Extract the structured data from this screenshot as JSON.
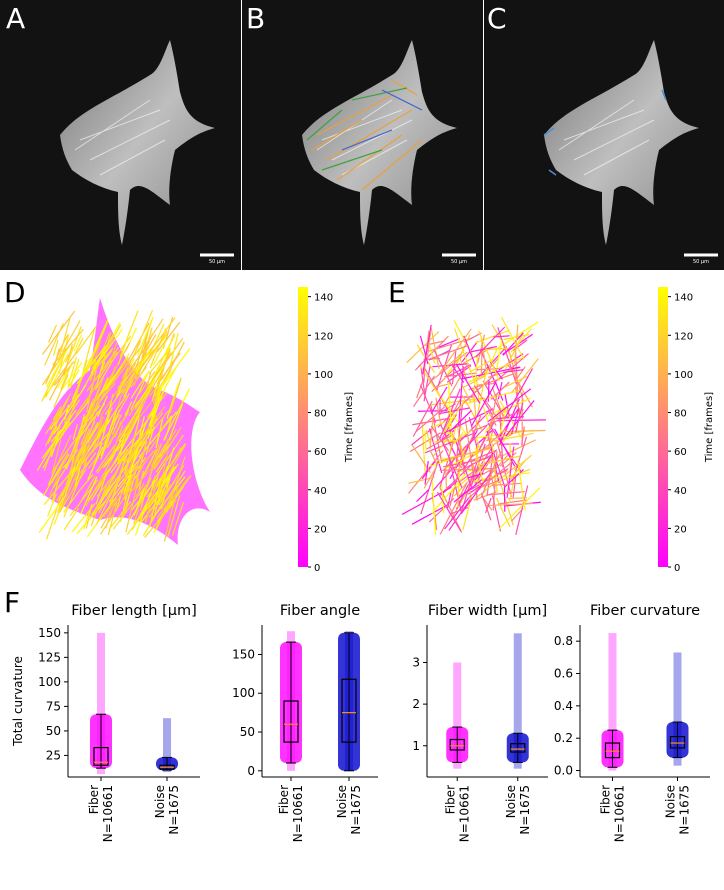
{
  "panel_labels": [
    "A",
    "B",
    "C",
    "D",
    "E",
    "F"
  ],
  "scale_bar_label": "50 µm",
  "chart_data": [
    {
      "type": "colorbar",
      "label": "Time [frames]",
      "colors": [
        "#ff00ff",
        "#ffff00"
      ],
      "ylim": [
        0,
        145
      ],
      "yticks": [
        0,
        20,
        40,
        60,
        80,
        100,
        120,
        140
      ]
    },
    {
      "type": "colorbar",
      "label": "Time [frames]",
      "colors": [
        "#ff00ff",
        "#ffff00"
      ],
      "ylim": [
        0,
        145
      ],
      "yticks": [
        0,
        20,
        40,
        60,
        80,
        100,
        120,
        140
      ]
    },
    {
      "type": "box",
      "title": "Fiber length [µm]",
      "ylabel": "Total curvature",
      "categories": [
        "Fiber",
        "Noise"
      ],
      "n_labels": [
        "N=10661",
        "N=1675"
      ],
      "ylim": [
        3,
        158
      ],
      "yticks": [
        25,
        50,
        75,
        100,
        125,
        150
      ],
      "boxes": [
        {
          "color": "#ff00ff",
          "min": 6,
          "whislo": 12,
          "q1": 15,
          "median": 18,
          "q3": 33,
          "whishi": 67,
          "max": 150
        },
        {
          "color": "#0000cc",
          "min": 8,
          "whislo": 10,
          "q1": 11,
          "median": 13,
          "q3": 15,
          "whishi": 23,
          "max": 63
        }
      ]
    },
    {
      "type": "box",
      "title": "Fiber angle",
      "categories": [
        "Fiber",
        "Noise"
      ],
      "n_labels": [
        "N=10661",
        "N=1675"
      ],
      "ylim": [
        -8,
        188
      ],
      "yticks": [
        0,
        50,
        100,
        150
      ],
      "boxes": [
        {
          "color": "#ff00ff",
          "min": 0,
          "whislo": 10,
          "q1": 37,
          "median": 60,
          "q3": 90,
          "whishi": 166,
          "max": 180
        },
        {
          "color": "#0000cc",
          "min": 0,
          "whislo": 0,
          "q1": 37,
          "median": 75,
          "q3": 118,
          "whishi": 178,
          "max": 180
        }
      ]
    },
    {
      "type": "box",
      "title": "Fiber width [µm]",
      "categories": [
        "Fiber",
        "Noise"
      ],
      "n_labels": [
        "N=10661",
        "N=1675"
      ],
      "ylim": [
        0.25,
        3.9
      ],
      "yticks": [
        1,
        2,
        3
      ],
      "boxes": [
        {
          "color": "#ff00ff",
          "min": 0.45,
          "whislo": 0.6,
          "q1": 0.9,
          "median": 1.0,
          "q3": 1.15,
          "whishi": 1.45,
          "max": 3.0
        },
        {
          "color": "#0000cc",
          "min": 0.45,
          "whislo": 0.6,
          "q1": 0.85,
          "median": 0.92,
          "q3": 1.05,
          "whishi": 1.3,
          "max": 3.7
        }
      ]
    },
    {
      "type": "box",
      "title": "Fiber curvature",
      "categories": [
        "Fiber",
        "Noise"
      ],
      "n_labels": [
        "N=10661",
        "N=1675"
      ],
      "ylim": [
        -0.04,
        0.9
      ],
      "yticks": [
        {
          "value": 0,
          "label": "0.0"
        },
        0.2,
        0.4,
        0.6,
        0.8
      ],
      "boxes": [
        {
          "color": "#ff00ff",
          "min": 0,
          "whislo": 0.02,
          "q1": 0.08,
          "median": 0.12,
          "q3": 0.17,
          "whishi": 0.25,
          "max": 0.85
        },
        {
          "color": "#0000cc",
          "min": 0.03,
          "whislo": 0.08,
          "q1": 0.14,
          "median": 0.17,
          "q3": 0.21,
          "whishi": 0.3,
          "max": 0.73
        }
      ]
    }
  ]
}
